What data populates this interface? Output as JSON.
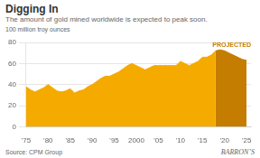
{
  "chart_data": {
    "type": "area",
    "title": "Digging In",
    "subtitle": "The amount of gold mined worldwide is expected to peak soon.",
    "ylabel": "100 million troy ounces",
    "source": "Source: CPM Group",
    "watermark": "BARRON’S",
    "series": [
      {
        "x": [
          1975,
          1976,
          1977,
          1978,
          1979,
          1980,
          1981,
          1982,
          1983,
          1984,
          1985,
          1986,
          1987,
          1988,
          1989,
          1990,
          1991,
          1992,
          1993,
          1994,
          1995,
          1996,
          1997,
          1998,
          1999,
          2000,
          2001,
          2002,
          2003,
          2004,
          2005,
          2006,
          2007,
          2008,
          2009,
          2010,
          2011,
          2012,
          2013,
          2014,
          2015,
          2016,
          2017,
          2018
        ],
        "values": [
          38,
          35,
          33,
          35,
          37,
          40,
          37,
          34,
          33,
          34,
          36,
          32,
          34,
          35,
          38,
          40,
          43,
          46,
          48,
          48,
          50,
          52,
          55,
          58,
          60,
          58,
          56,
          54,
          56,
          58,
          58,
          58,
          58,
          58,
          58,
          62,
          60,
          58,
          60,
          62,
          66,
          66,
          68,
          72
        ],
        "color": "#f5aa00"
      },
      {
        "x": [
          2018,
          2019,
          2020,
          2021,
          2022,
          2023,
          2024,
          2025
        ],
        "values": [
          72,
          73,
          72,
          70,
          68,
          66,
          64,
          63
        ],
        "color": "#c47d00"
      }
    ],
    "annotations": [
      {
        "text": "PROJECTED",
        "color": "#c47d00"
      }
    ],
    "xlim": [
      1975,
      2026
    ],
    "xticks": [
      {
        "value": 1975,
        "label": "'75"
      },
      {
        "value": 1980,
        "label": "'80"
      },
      {
        "value": 1985,
        "label": "'85"
      },
      {
        "value": 1990,
        "label": "'90"
      },
      {
        "value": 1995,
        "label": "'95"
      },
      2000,
      {
        "value": 2005,
        "label": "'05"
      },
      {
        "value": 2010,
        "label": "'10"
      },
      {
        "value": 2015,
        "label": "'15"
      },
      {
        "value": 2020,
        "label": "'20"
      },
      {
        "value": 2025,
        "label": "'25"
      }
    ],
    "ylim": [
      0,
      80
    ],
    "yticks": [
      0,
      20,
      40,
      60,
      80
    ],
    "grid": "y"
  }
}
